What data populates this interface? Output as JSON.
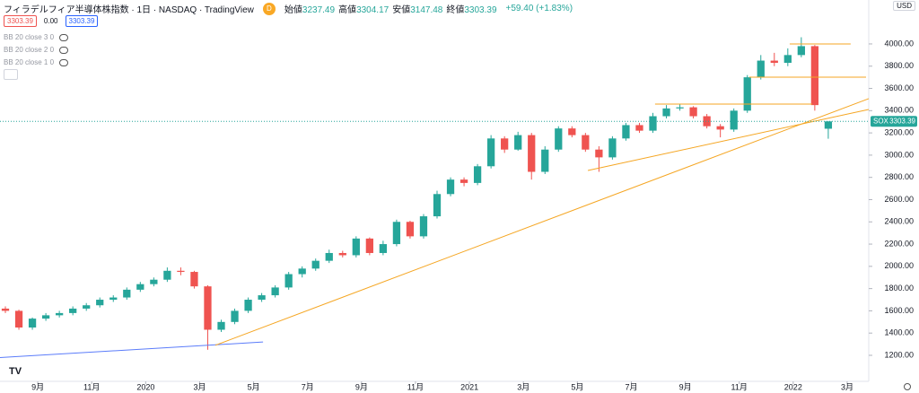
{
  "header": {
    "title": "フィラデルフィア半導体株指数 · 1日 · NASDAQ · TradingView",
    "interval_badge": "D",
    "ohlc": [
      {
        "label": "始値",
        "value": "3237.49"
      },
      {
        "label": "高値",
        "value": "3304.17"
      },
      {
        "label": "安値",
        "value": "3147.48"
      },
      {
        "label": "終値",
        "value": "3303.39"
      }
    ],
    "change": "+59.40 (+1.83%)",
    "currency": "USD",
    "price_boxes": [
      "3303.39",
      "0.00",
      "3303.39"
    ],
    "indicators": [
      "BB 20 close 3 0",
      "BB 20 close 2 0",
      "BB 20 close 1 0"
    ]
  },
  "chart_data": {
    "type": "candlestick",
    "symbol": "SOX",
    "last_price": 3303.39,
    "last_price_label": "3303.39",
    "up_color": "#26a69a",
    "down_color": "#ef5350",
    "x": [
      6.8,
      7.3,
      7.8,
      8.3,
      8.8,
      9.3,
      9.8,
      10.3,
      10.8,
      11.3,
      11.8,
      12.3,
      12.8,
      13.3,
      13.8,
      14.3,
      14.8,
      15.3,
      15.8,
      16.3,
      16.8,
      17.3,
      17.8,
      18.3,
      18.8,
      19.3,
      19.8,
      20.3,
      20.8,
      21.3,
      21.8,
      22.3,
      22.8,
      23.3,
      23.8,
      24.3,
      24.8,
      25.3,
      25.8,
      26.3,
      26.8,
      27.3,
      27.8,
      28.3,
      28.8,
      29.3,
      29.8,
      30.3,
      30.8,
      31.3,
      31.8,
      32.3,
      32.8,
      33.3,
      33.8,
      34.3,
      34.8,
      35.3,
      35.8,
      36.3,
      36.8,
      37.3
    ],
    "open": [
      1620,
      1600,
      1450,
      1530,
      1560,
      1580,
      1620,
      1650,
      1700,
      1720,
      1790,
      1840,
      1880,
      1960,
      1950,
      1820,
      1430,
      1500,
      1600,
      1700,
      1740,
      1810,
      1930,
      1980,
      2050,
      2120,
      2100,
      2250,
      2120,
      2200,
      2400,
      2270,
      2450,
      2650,
      2780,
      2750,
      2900,
      3150,
      3050,
      3180,
      2850,
      3050,
      3240,
      3180,
      3050,
      2980,
      3150,
      3270,
      3220,
      3350,
      3420,
      3430,
      3350,
      3260,
      3230,
      3400,
      3700,
      3850,
      3830,
      3900,
      3980,
      3237.49
    ],
    "high": [
      1640,
      1610,
      1540,
      1580,
      1600,
      1640,
      1670,
      1720,
      1740,
      1810,
      1860,
      1900,
      1990,
      1990,
      1960,
      1830,
      1520,
      1620,
      1720,
      1760,
      1830,
      1950,
      2000,
      2070,
      2150,
      2140,
      2270,
      2260,
      2230,
      2420,
      2410,
      2470,
      2680,
      2800,
      2800,
      2920,
      3180,
      3170,
      3210,
      3200,
      3080,
      3260,
      3260,
      3200,
      3080,
      3170,
      3290,
      3290,
      3380,
      3450,
      3460,
      3440,
      3370,
      3280,
      3420,
      3720,
      3900,
      3920,
      3960,
      4060,
      3990,
      3304.17
    ],
    "low": [
      1580,
      1430,
      1430,
      1510,
      1540,
      1560,
      1600,
      1630,
      1680,
      1700,
      1770,
      1820,
      1860,
      1920,
      1800,
      1250,
      1410,
      1480,
      1580,
      1680,
      1720,
      1790,
      1900,
      1960,
      2030,
      2080,
      2080,
      2100,
      2100,
      2180,
      2250,
      2250,
      2430,
      2630,
      2720,
      2730,
      2880,
      3020,
      3040,
      2780,
      2830,
      3030,
      3160,
      3030,
      2850,
      2960,
      3130,
      3200,
      3200,
      3330,
      3400,
      3330,
      3240,
      3160,
      3210,
      3380,
      3680,
      3800,
      3800,
      3880,
      3400,
      3147.48
    ],
    "close": [
      1600,
      1450,
      1530,
      1560,
      1580,
      1620,
      1650,
      1700,
      1720,
      1790,
      1840,
      1880,
      1960,
      1950,
      1820,
      1430,
      1500,
      1600,
      1700,
      1740,
      1810,
      1930,
      1980,
      2050,
      2120,
      2100,
      2250,
      2120,
      2200,
      2400,
      2270,
      2450,
      2650,
      2780,
      2750,
      2900,
      3150,
      3050,
      3180,
      2850,
      3050,
      3240,
      3180,
      3050,
      2980,
      3150,
      3270,
      3220,
      3350,
      3420,
      3430,
      3350,
      3260,
      3230,
      3400,
      3700,
      3850,
      3830,
      3900,
      3980,
      3450,
      3303.39
    ],
    "drawings": [
      {
        "color": "#5b7cfa",
        "x": [
          6.6,
          16.35
        ],
        "y": [
          1180,
          1320
        ]
      },
      {
        "color": "#f5a623",
        "x": [
          14.58,
          38.8
        ],
        "y": [
          1290,
          3508
        ]
      },
      {
        "color": "#f5a623",
        "x": [
          28.39,
          38.8
        ],
        "y": [
          2862,
          3411
        ]
      },
      {
        "color": "#f5a623",
        "x": [
          30.88,
          36.7
        ],
        "y": [
          3459,
          3459
        ]
      },
      {
        "color": "#f5a623",
        "x": [
          34.37,
          38.7
        ],
        "y": [
          3701,
          3701
        ]
      },
      {
        "color": "#f5a623",
        "x": [
          35.87,
          38.13
        ],
        "y": [
          4000,
          4000
        ]
      }
    ],
    "xlim": [
      6.6,
      38.8
    ],
    "xticks": [
      {
        "value": 8,
        "label": "9月"
      },
      {
        "value": 10,
        "label": "11月"
      },
      {
        "value": 12,
        "label": "2020"
      },
      {
        "value": 14,
        "label": "3月"
      },
      {
        "value": 16,
        "label": "5月"
      },
      {
        "value": 18,
        "label": "7月"
      },
      {
        "value": 20,
        "label": "9月"
      },
      {
        "value": 22,
        "label": "11月"
      },
      {
        "value": 24,
        "label": "2021"
      },
      {
        "value": 26,
        "label": "3月"
      },
      {
        "value": 28,
        "label": "5月"
      },
      {
        "value": 30,
        "label": "7月"
      },
      {
        "value": 32,
        "label": "9月"
      },
      {
        "value": 34,
        "label": "11月"
      },
      {
        "value": 36,
        "label": "2022"
      },
      {
        "value": 38,
        "label": "3月"
      }
    ],
    "ylim": [
      966,
      4395
    ],
    "yticks": [
      {
        "value": 1200,
        "label": "1200.00"
      },
      {
        "value": 1400,
        "label": "1400.00"
      },
      {
        "value": 1600,
        "label": "1600.00"
      },
      {
        "value": 1800,
        "label": "1800.00"
      },
      {
        "value": 2000,
        "label": "2000.00"
      },
      {
        "value": 2200,
        "label": "2200.00"
      },
      {
        "value": 2400,
        "label": "2400.00"
      },
      {
        "value": 2600,
        "label": "2600.00"
      },
      {
        "value": 2800,
        "label": "2800.00"
      },
      {
        "value": 3000,
        "label": "3000.00"
      },
      {
        "value": 3200,
        "label": "3200.00"
      },
      {
        "value": 3400,
        "label": "3400.00"
      },
      {
        "value": 3600,
        "label": "3600.00"
      },
      {
        "value": 3800,
        "label": "3800.00"
      },
      {
        "value": 4000,
        "label": "4000.00"
      }
    ]
  }
}
